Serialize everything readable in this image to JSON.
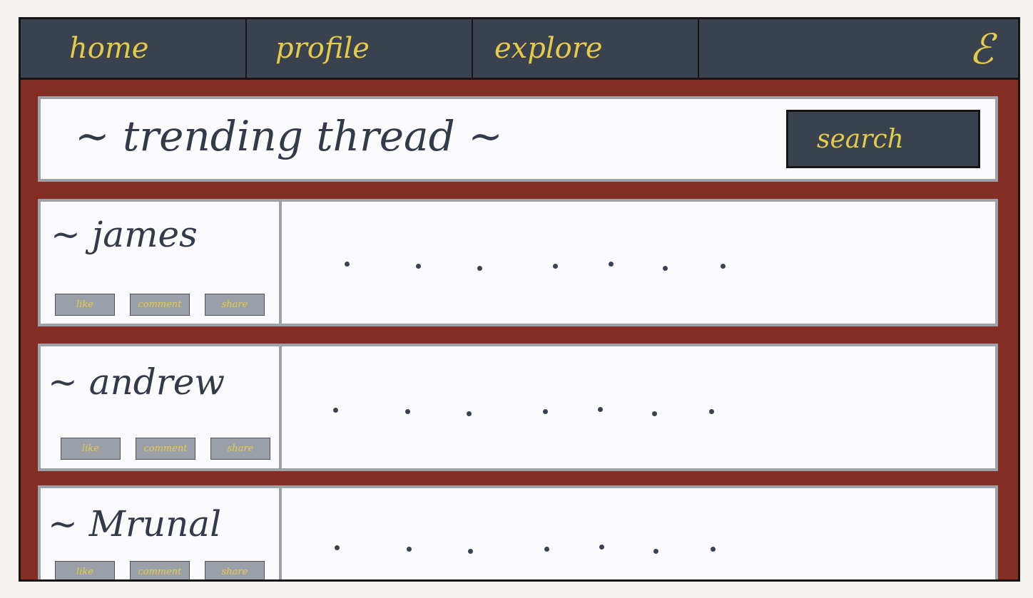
{
  "nav": {
    "items": [
      {
        "label": "home"
      },
      {
        "label": "profile"
      },
      {
        "label": "explore"
      }
    ],
    "logo": "ℰ"
  },
  "header": {
    "title": "~ trending thread ~",
    "search_label": "search"
  },
  "posts": [
    {
      "author": "~ james",
      "actions": [
        "like",
        "comment",
        "share"
      ],
      "content": "· · · · · · ·"
    },
    {
      "author": "~ andrew",
      "actions": [
        "like",
        "comment",
        "share"
      ],
      "content": "· · · · · · ·"
    },
    {
      "author": "~ Mrunal",
      "actions": [
        "like",
        "comment",
        "share"
      ],
      "content": "· · · · · · ·"
    }
  ],
  "colors": {
    "nav_bg": "#3a4250",
    "accent": "#e3cc4a",
    "page_bg": "#842d25",
    "card_bg": "#fbfafd",
    "card_border": "#9ea3aa",
    "text_dark": "#343a48"
  }
}
